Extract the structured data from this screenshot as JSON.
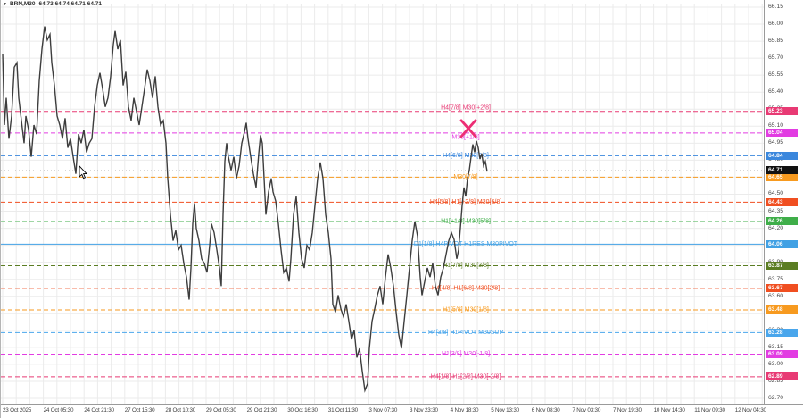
{
  "titlebar": {
    "menu_icon": "▼",
    "symbol": "BRN,M30",
    "ohlc": "64.73 64.74 64.71 64.71"
  },
  "colors": {
    "background": "#ffffff",
    "grid": "#ebebeb",
    "axis_text": "#4a4a4a",
    "series": "#3d3d3d",
    "signal_x": "#ed2d74",
    "current_price_badge": "#111111"
  },
  "chart_data": {
    "type": "line",
    "title": "BRN,M30 64.73 64.74 64.71 64.71",
    "symbol": "BRN",
    "timeframe": "M30",
    "open": "64.73",
    "high": "64.74",
    "low": "64.71",
    "close": "64.71",
    "grid": true,
    "y_axis": {
      "min": 62.7,
      "max": 66.15,
      "tick_step": 0.15,
      "ticks": [
        "66.15",
        "66.00",
        "65.85",
        "65.70",
        "65.55",
        "65.40",
        "65.25",
        "65.10",
        "64.95",
        "64.80",
        "64.65",
        "64.50",
        "64.35",
        "64.20",
        "64.05",
        "63.90",
        "63.75",
        "63.60",
        "63.45",
        "63.30",
        "63.15",
        "63.00",
        "62.85",
        "62.70"
      ]
    },
    "x_axis": {
      "labels": [
        "23 Oct 2025",
        "24 Oct 05:30",
        "24 Oct 21:30",
        "27 Oct 15:30",
        "28 Oct 10:30",
        "29 Oct 05:30",
        "29 Oct 21:30",
        "30 Oct 16:30",
        "31 Oct 11:30",
        "3 Nov 07:30",
        "3 Nov 23:30",
        "4 Nov 18:30",
        "5 Nov 13:30",
        "6 Nov 08:30",
        "7 Nov 03:30",
        "7 Nov 19:30",
        "10 Nov 14:30",
        "11 Nov 09:30",
        "12 Nov 04:30"
      ]
    },
    "levels": [
      {
        "price": 65.23,
        "value_label": "65.23",
        "label": "H4[7/8] M30[+2/8]",
        "color": "#e83a74",
        "style": "dashed",
        "label_dy": -5
      },
      {
        "price": 65.04,
        "value_label": "65.04",
        "label": "M30[+1/8]",
        "color": "#e23ce2",
        "style": "dashed",
        "label_dy": 4
      },
      {
        "price": 64.84,
        "value_label": "64.84",
        "label": "H4[6/8] M30[8/8]",
        "color": "#3a87dd",
        "style": "dashed",
        "label_dy": -1
      },
      {
        "price": 64.65,
        "value_label": "64.65",
        "label": "M30[7/8]",
        "color": "#f79a1f",
        "style": "dashed",
        "label_dy": -1
      },
      {
        "price": 64.43,
        "value_label": "64.43",
        "label": "H4[5/8] H1[+2/8] M30[6/8]",
        "color": "#f04f21",
        "style": "dashed",
        "label_dy": -1
      },
      {
        "price": 64.26,
        "value_label": "64.26",
        "label": "H1[+1/8] M30[5/8]",
        "color": "#3fae49",
        "style": "dashed",
        "label_dy": -1
      },
      {
        "price": 64.06,
        "value_label": "64.06",
        "label": "D1[1/8] H4PIVOT H1RES M30PIVOT",
        "color": "#41a1e4",
        "style": "solid",
        "label_dy": -1
      },
      {
        "price": 63.87,
        "value_label": "63.87",
        "label": "H1[7/8] M30[3/8]",
        "color": "#5b7d23",
        "style": "dashed",
        "label_dy": -1
      },
      {
        "price": 63.67,
        "value_label": "63.67",
        "label": "H4[4/8] H1[6/8] M30[2/8]",
        "color": "#f04f21",
        "style": "dashed",
        "label_dy": -1
      },
      {
        "price": 63.48,
        "value_label": "63.48",
        "label": "H1[5/8] M30[1/8]",
        "color": "#f79a1f",
        "style": "dashed",
        "label_dy": -1
      },
      {
        "price": 63.28,
        "value_label": "63.28",
        "label": "H4[3/8] H1PIVOT M30SUP",
        "color": "#49a6ec",
        "style": "dashed",
        "label_dy": -1
      },
      {
        "price": 63.09,
        "value_label": "63.09",
        "label": "H1[3/8] M30[-1/8]",
        "color": "#e23ce2",
        "style": "dashed",
        "label_dy": -1
      },
      {
        "price": 62.89,
        "value_label": "62.89",
        "label": "H4[1/8] H1[2/8] M30[-2/8]",
        "color": "#e83a74",
        "style": "dashed",
        "label_dy": -1
      }
    ],
    "current_price": {
      "value": "64.71",
      "price": 64.71,
      "color": "#111111"
    },
    "signal": {
      "type": "sell-x",
      "x": 524,
      "price": 65.08,
      "color": "#ed2d74"
    },
    "cursor": {
      "x": 88,
      "y": 193
    },
    "series": {
      "name": "BRN M30 price",
      "color": "#3d3d3d",
      "points": [
        [
          2,
          65.74
        ],
        [
          4,
          65.11
        ],
        [
          6,
          65.35
        ],
        [
          9,
          64.99
        ],
        [
          12,
          65.19
        ],
        [
          15,
          65.62
        ],
        [
          18,
          65.66
        ],
        [
          20,
          65.35
        ],
        [
          23,
          65.15
        ],
        [
          26,
          64.95
        ],
        [
          28,
          65.19
        ],
        [
          31,
          65.07
        ],
        [
          34,
          64.83
        ],
        [
          37,
          65.11
        ],
        [
          40,
          65.03
        ],
        [
          43,
          65.5
        ],
        [
          46,
          65.78
        ],
        [
          49,
          65.98
        ],
        [
          52,
          65.86
        ],
        [
          55,
          65.91
        ],
        [
          57,
          65.66
        ],
        [
          60,
          65.46
        ],
        [
          63,
          65.19
        ],
        [
          66,
          65.11
        ],
        [
          69,
          64.99
        ],
        [
          72,
          65.17
        ],
        [
          75,
          64.91
        ],
        [
          78,
          64.99
        ],
        [
          81,
          64.83
        ],
        [
          84,
          64.68
        ],
        [
          87,
          65.03
        ],
        [
          90,
          64.95
        ],
        [
          93,
          65.07
        ],
        [
          96,
          64.87
        ],
        [
          99,
          64.95
        ],
        [
          102,
          64.99
        ],
        [
          105,
          65.27
        ],
        [
          108,
          65.46
        ],
        [
          111,
          65.57
        ],
        [
          114,
          65.43
        ],
        [
          117,
          65.27
        ],
        [
          120,
          65.35
        ],
        [
          123,
          65.54
        ],
        [
          126,
          65.82
        ],
        [
          128,
          65.94
        ],
        [
          131,
          65.78
        ],
        [
          134,
          65.86
        ],
        [
          137,
          65.46
        ],
        [
          140,
          65.58
        ],
        [
          143,
          65.27
        ],
        [
          146,
          65.15
        ],
        [
          149,
          65.35
        ],
        [
          152,
          65.23
        ],
        [
          155,
          65.11
        ],
        [
          158,
          65.27
        ],
        [
          161,
          65.43
        ],
        [
          164,
          65.6
        ],
        [
          167,
          65.5
        ],
        [
          170,
          65.35
        ],
        [
          173,
          65.54
        ],
        [
          176,
          65.27
        ],
        [
          179,
          65.11
        ],
        [
          182,
          65.15
        ],
        [
          185,
          64.95
        ],
        [
          187,
          64.64
        ],
        [
          190,
          64.32
        ],
        [
          193,
          64.09
        ],
        [
          196,
          64.18
        ],
        [
          199,
          64.01
        ],
        [
          202,
          64.05
        ],
        [
          205,
          63.89
        ],
        [
          208,
          63.77
        ],
        [
          211,
          63.57
        ],
        [
          213,
          63.85
        ],
        [
          215,
          64.24
        ],
        [
          217,
          64.42
        ],
        [
          219,
          64.2
        ],
        [
          222,
          64.09
        ],
        [
          225,
          63.93
        ],
        [
          228,
          63.89
        ],
        [
          231,
          63.81
        ],
        [
          234,
          64.05
        ],
        [
          236,
          64.24
        ],
        [
          239,
          64.16
        ],
        [
          242,
          64.01
        ],
        [
          245,
          63.85
        ],
        [
          247,
          63.69
        ],
        [
          249,
          64.32
        ],
        [
          251,
          64.79
        ],
        [
          253,
          64.95
        ],
        [
          255,
          64.83
        ],
        [
          258,
          64.71
        ],
        [
          261,
          64.83
        ],
        [
          264,
          64.64
        ],
        [
          267,
          64.75
        ],
        [
          270,
          64.95
        ],
        [
          273,
          65.05
        ],
        [
          275,
          65.13
        ],
        [
          277,
          64.99
        ],
        [
          280,
          64.83
        ],
        [
          283,
          64.68
        ],
        [
          286,
          64.56
        ],
        [
          289,
          64.86
        ],
        [
          291,
          65.02
        ],
        [
          293,
          64.95
        ],
        [
          295,
          64.64
        ],
        [
          297,
          64.32
        ],
        [
          300,
          64.52
        ],
        [
          303,
          64.64
        ],
        [
          305,
          64.52
        ],
        [
          308,
          64.44
        ],
        [
          311,
          64.24
        ],
        [
          314,
          64.01
        ],
        [
          317,
          63.81
        ],
        [
          320,
          63.85
        ],
        [
          323,
          63.73
        ],
        [
          325,
          63.93
        ],
        [
          328,
          64.32
        ],
        [
          331,
          64.48
        ],
        [
          334,
          64.16
        ],
        [
          337,
          63.93
        ],
        [
          340,
          63.85
        ],
        [
          343,
          64.05
        ],
        [
          346,
          64.01
        ],
        [
          349,
          64.16
        ],
        [
          352,
          64.4
        ],
        [
          355,
          64.64
        ],
        [
          358,
          64.78
        ],
        [
          361,
          64.64
        ],
        [
          364,
          64.32
        ],
        [
          367,
          64.16
        ],
        [
          370,
          63.93
        ],
        [
          372,
          63.53
        ],
        [
          375,
          63.46
        ],
        [
          378,
          63.61
        ],
        [
          381,
          63.49
        ],
        [
          384,
          63.42
        ],
        [
          387,
          63.53
        ],
        [
          390,
          63.38
        ],
        [
          393,
          63.22
        ],
        [
          396,
          63.3
        ],
        [
          399,
          63.06
        ],
        [
          402,
          63.14
        ],
        [
          405,
          62.94
        ],
        [
          408,
          62.77
        ],
        [
          411,
          62.83
        ],
        [
          413,
          63.14
        ],
        [
          416,
          63.38
        ],
        [
          419,
          63.49
        ],
        [
          422,
          63.61
        ],
        [
          425,
          63.69
        ],
        [
          428,
          63.53
        ],
        [
          431,
          63.77
        ],
        [
          434,
          63.97
        ],
        [
          437,
          63.85
        ],
        [
          440,
          63.69
        ],
        [
          443,
          63.46
        ],
        [
          446,
          63.26
        ],
        [
          449,
          63.14
        ],
        [
          452,
          63.38
        ],
        [
          455,
          63.61
        ],
        [
          458,
          63.85
        ],
        [
          461,
          64.09
        ],
        [
          464,
          64.26
        ],
        [
          467,
          64.13
        ],
        [
          470,
          63.77
        ],
        [
          472,
          63.61
        ],
        [
          475,
          63.73
        ],
        [
          478,
          63.85
        ],
        [
          481,
          63.77
        ],
        [
          484,
          63.89
        ],
        [
          487,
          63.69
        ],
        [
          490,
          63.61
        ],
        [
          493,
          63.77
        ],
        [
          496,
          63.85
        ],
        [
          499,
          63.97
        ],
        [
          502,
          64.09
        ],
        [
          505,
          64.16
        ],
        [
          508,
          64.1
        ],
        [
          511,
          63.93
        ],
        [
          513,
          64.01
        ],
        [
          515,
          64.2
        ],
        [
          517,
          64.4
        ],
        [
          519,
          64.56
        ],
        [
          521,
          64.48
        ],
        [
          523,
          64.64
        ],
        [
          525,
          64.71
        ],
        [
          527,
          64.83
        ],
        [
          529,
          64.94
        ],
        [
          531,
          64.87
        ],
        [
          533,
          64.97
        ],
        [
          535,
          64.91
        ],
        [
          537,
          64.81
        ],
        [
          539,
          64.86
        ],
        [
          541,
          64.75
        ],
        [
          543,
          64.79
        ],
        [
          545,
          64.7
        ]
      ]
    }
  }
}
